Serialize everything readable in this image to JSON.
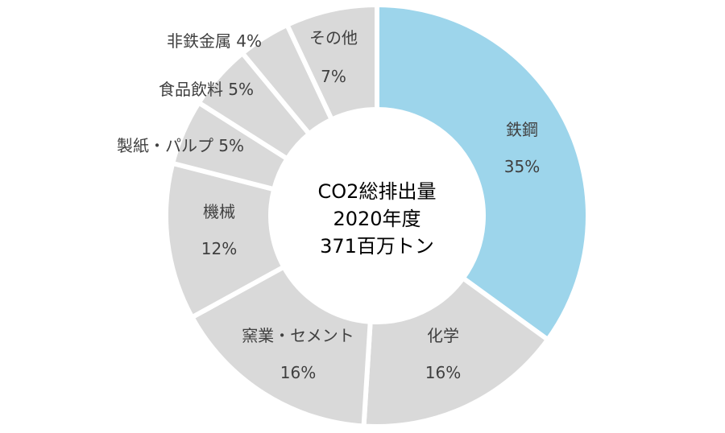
{
  "chart_data": {
    "type": "pie",
    "title": "",
    "center_text": [
      "CO2総排出量",
      "2020年度",
      "371百万トン"
    ],
    "slices": [
      {
        "name": "鉄鋼",
        "value": 35,
        "value_label": "35%",
        "color": "#9dd5eb"
      },
      {
        "name": "化学",
        "value": 16,
        "value_label": "16%",
        "color": "#d9d9d9"
      },
      {
        "name": "窯業・セメント",
        "value": 16,
        "value_label": "16%",
        "color": "#d9d9d9"
      },
      {
        "name": "機械",
        "value": 12,
        "value_label": "12%",
        "color": "#d9d9d9"
      },
      {
        "name": "製紙・パルプ",
        "value": 5,
        "value_label": "5%",
        "color": "#d9d9d9"
      },
      {
        "name": "食品飲料",
        "value": 5,
        "value_label": "5%",
        "color": "#d9d9d9"
      },
      {
        "name": "非鉄金属",
        "value": 4,
        "value_label": "4%",
        "color": "#d9d9d9"
      },
      {
        "name": "その他",
        "value": 7,
        "value_label": "7%",
        "color": "#d9d9d9"
      }
    ],
    "legend": "none"
  }
}
